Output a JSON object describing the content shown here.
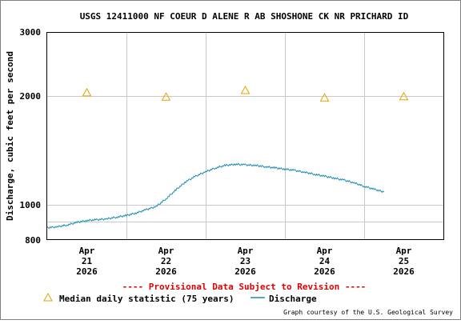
{
  "chart_data": {
    "type": "line",
    "title": "USGS 12411000 NF COEUR D ALENE R AB SHOSHONE CK NR PRICHARD ID",
    "ylabel": "Discharge, cubic feet per second",
    "xlabel": "",
    "y_scale": "log",
    "ylim": [
      800,
      3000
    ],
    "y_ticks": [
      800,
      1000,
      2000,
      3000
    ],
    "y_minor_gridlines": [
      900
    ],
    "x_range": [
      "2026-04-20T12:00",
      "2026-04-25T12:00"
    ],
    "x_ticks": [
      {
        "x": "2026-04-21T00:00",
        "label": [
          "Apr",
          "21",
          "2026"
        ]
      },
      {
        "x": "2026-04-22T00:00",
        "label": [
          "Apr",
          "22",
          "2026"
        ]
      },
      {
        "x": "2026-04-23T00:00",
        "label": [
          "Apr",
          "23",
          "2026"
        ]
      },
      {
        "x": "2026-04-24T00:00",
        "label": [
          "Apr",
          "24",
          "2026"
        ]
      },
      {
        "x": "2026-04-25T00:00",
        "label": [
          "Apr",
          "25",
          "2026"
        ]
      }
    ],
    "x_gridlines": [
      "2026-04-21T12:00",
      "2026-04-22T12:00",
      "2026-04-23T12:00",
      "2026-04-24T12:00"
    ],
    "grid": true,
    "series": [
      {
        "name": "Discharge",
        "kind": "line",
        "color": "#1a8cb4",
        "points": [
          [
            "2026-04-20T12:00",
            865
          ],
          [
            "2026-04-20T15:00",
            870
          ],
          [
            "2026-04-20T18:00",
            880
          ],
          [
            "2026-04-20T21:00",
            895
          ],
          [
            "2026-04-21T00:00",
            905
          ],
          [
            "2026-04-21T03:00",
            910
          ],
          [
            "2026-04-21T06:00",
            915
          ],
          [
            "2026-04-21T09:00",
            925
          ],
          [
            "2026-04-21T12:00",
            935
          ],
          [
            "2026-04-21T15:00",
            950
          ],
          [
            "2026-04-21T18:00",
            970
          ],
          [
            "2026-04-21T21:00",
            990
          ],
          [
            "2026-04-22T00:00",
            1040
          ],
          [
            "2026-04-22T03:00",
            1100
          ],
          [
            "2026-04-22T06:00",
            1160
          ],
          [
            "2026-04-22T09:00",
            1200
          ],
          [
            "2026-04-22T12:00",
            1235
          ],
          [
            "2026-04-22T15:00",
            1265
          ],
          [
            "2026-04-22T18:00",
            1285
          ],
          [
            "2026-04-22T21:00",
            1295
          ],
          [
            "2026-04-23T00:00",
            1290
          ],
          [
            "2026-04-23T03:00",
            1285
          ],
          [
            "2026-04-23T06:00",
            1275
          ],
          [
            "2026-04-23T09:00",
            1265
          ],
          [
            "2026-04-23T12:00",
            1255
          ],
          [
            "2026-04-23T15:00",
            1245
          ],
          [
            "2026-04-23T18:00",
            1230
          ],
          [
            "2026-04-23T21:00",
            1215
          ],
          [
            "2026-04-24T00:00",
            1200
          ],
          [
            "2026-04-24T03:00",
            1185
          ],
          [
            "2026-04-24T06:00",
            1170
          ],
          [
            "2026-04-24T09:00",
            1150
          ],
          [
            "2026-04-24T12:00",
            1125
          ],
          [
            "2026-04-24T15:00",
            1105
          ],
          [
            "2026-04-24T18:00",
            1085
          ]
        ]
      },
      {
        "name": "Median daily statistic (75 years)",
        "kind": "marker",
        "marker": "triangle",
        "color": "#e8a000",
        "points": [
          [
            "2026-04-21T00:00",
            2040
          ],
          [
            "2026-04-22T00:00",
            1985
          ],
          [
            "2026-04-23T00:00",
            2070
          ],
          [
            "2026-04-24T00:00",
            1975
          ],
          [
            "2026-04-25T00:00",
            1990
          ]
        ]
      }
    ],
    "legend": {
      "placement": "bottom",
      "items": [
        "Median daily statistic (75 years)",
        "Discharge"
      ]
    },
    "annotations": {
      "provisional": "---- Provisional Data Subject to Revision ----",
      "credit": "Graph courtesy of the U.S. Geological Survey"
    },
    "colors": {
      "provisional": "#e00000",
      "grid": "#c8c8c8",
      "axis": "#000000"
    }
  }
}
